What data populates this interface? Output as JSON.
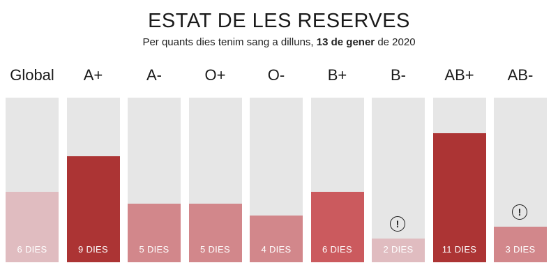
{
  "chart_data": {
    "type": "bar",
    "title": "ESTAT DE LES RESERVES",
    "subtitle_prefix": "Per quants dies tenim sang a dilluns,",
    "subtitle_date": "13 de gener",
    "subtitle_suffix": "de 2020",
    "unit_label": "DIES",
    "ylim": [
      0,
      14
    ],
    "categories": [
      "Global",
      "A+",
      "A-",
      "O+",
      "O-",
      "B+",
      "B-",
      "AB+",
      "AB-"
    ],
    "values": [
      6,
      9,
      5,
      5,
      4,
      6,
      2,
      11,
      3
    ],
    "value_labels": [
      "6 DIES",
      "9 DIES",
      "5 DIES",
      "5 DIES",
      "4 DIES",
      "6 DIES",
      "2 DIES",
      "11 DIES",
      "3 DIES"
    ],
    "alert_symbol": "!",
    "alerts": [
      false,
      false,
      false,
      false,
      false,
      false,
      true,
      false,
      true
    ],
    "bar_colors": [
      "#e0bcc0",
      "#ac3434",
      "#d2878b",
      "#d2878b",
      "#d2878b",
      "#cb5a5e",
      "#e0bcc0",
      "#ac3434",
      "#d2878b"
    ],
    "track_color": "#e6e6e6"
  }
}
